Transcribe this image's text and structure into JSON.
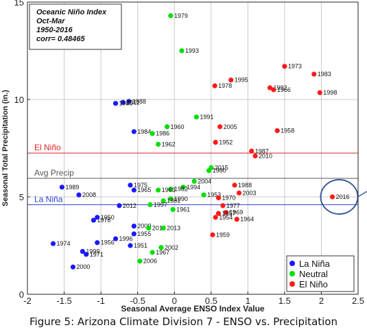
{
  "caption": "Figure 5: Arizona Climate Division 7 - ENSO vs. Precipitation",
  "chart_data": {
    "type": "scatter",
    "title": "",
    "xlabel": "Seasonal Average ENSO Index Value",
    "ylabel": "Seasonal Total Precipitation (in.)",
    "xlim": [
      -2,
      2.5
    ],
    "ylim": [
      0,
      15
    ],
    "xticks": [
      -2,
      -1.5,
      -1,
      -0.5,
      0,
      0.5,
      1,
      1.5,
      2,
      2.5
    ],
    "xtick_labels": [
      "-2",
      "-1.5",
      "-1",
      "-0.5",
      "0",
      "0.5",
      "1",
      "1.5",
      "2",
      "2.5"
    ],
    "yticks": [
      0,
      5,
      10,
      15
    ],
    "ytick_labels": [
      "0",
      "5",
      "10",
      "15"
    ],
    "grid": true,
    "info_box": [
      "Oceanic Niño Index",
      "Oct-Mar",
      "1950-2016",
      "corr= 0.48465"
    ],
    "threshold_lines": [
      {
        "label": "El Niño",
        "y": 7.25,
        "color": "#e02020"
      },
      {
        "label": "Avg Precip",
        "y": 5.95,
        "color": "#555555"
      },
      {
        "label": "La Niña",
        "y": 4.6,
        "color": "#2a3fd6"
      }
    ],
    "legend": {
      "position": "bottom-right",
      "entries": [
        {
          "label": "La Niña",
          "color": "#1a1aff"
        },
        {
          "label": "Neutral",
          "color": "#00e000"
        },
        {
          "label": "El Niño",
          "color": "#ff1a1a"
        }
      ]
    },
    "highlight": {
      "label": "2016",
      "x": 2.15,
      "y": 5.0,
      "circle_color": "#3a5a9a"
    },
    "series": [
      {
        "name": "La Niña",
        "color": "#1a1aff",
        "points": [
          {
            "year": "1988",
            "x": -0.62,
            "y": 9.9
          },
          {
            "year": "2000",
            "x": -1.38,
            "y": 1.4
          },
          {
            "year": "2008",
            "x": -1.3,
            "y": 5.1
          },
          {
            "year": "1989",
            "x": -1.53,
            "y": 5.5
          },
          {
            "year": "1999",
            "x": -1.25,
            "y": 2.2
          },
          {
            "year": "1971",
            "x": -1.2,
            "y": 2.05
          },
          {
            "year": "1974",
            "x": -1.65,
            "y": 2.6
          },
          {
            "year": "1956",
            "x": -1.05,
            "y": 2.65
          },
          {
            "year": "1996",
            "x": -0.8,
            "y": 2.85
          },
          {
            "year": "1951",
            "x": -0.6,
            "y": 2.5
          },
          {
            "year": "1955",
            "x": -0.55,
            "y": 3.1
          },
          {
            "year": "2009",
            "x": -0.55,
            "y": 3.5
          },
          {
            "year": "1976",
            "x": -1.1,
            "y": 3.8
          },
          {
            "year": "1950",
            "x": -1.05,
            "y": 3.95
          },
          {
            "year": "2012",
            "x": -0.75,
            "y": 4.55
          },
          {
            "year": "1975",
            "x": -0.6,
            "y": 5.6
          },
          {
            "year": "1965",
            "x": -0.55,
            "y": 5.35
          },
          {
            "year": "1984",
            "x": -0.55,
            "y": 8.35
          },
          {
            "year": "2011",
            "x": -0.7,
            "y": 9.85
          },
          {
            "year": "1985",
            "x": -0.8,
            "y": 9.8
          }
        ]
      },
      {
        "name": "Neutral",
        "color": "#00e000",
        "points": [
          {
            "year": "1979",
            "x": -0.05,
            "y": 14.3
          },
          {
            "year": "1993",
            "x": 0.1,
            "y": 12.5
          },
          {
            "year": "1991",
            "x": 0.3,
            "y": 9.1
          },
          {
            "year": "1960",
            "x": -0.1,
            "y": 8.6
          },
          {
            "year": "1986",
            "x": -0.3,
            "y": 8.25
          },
          {
            "year": "1962",
            "x": -0.22,
            "y": 7.7
          },
          {
            "year": "2015",
            "x": 0.5,
            "y": 6.5
          },
          {
            "year": "1980",
            "x": 0.47,
            "y": 6.35
          },
          {
            "year": "2004",
            "x": 0.27,
            "y": 5.8
          },
          {
            "year": "1994",
            "x": 0.12,
            "y": 5.5
          },
          {
            "year": "1982",
            "x": -0.05,
            "y": 5.4
          },
          {
            "year": "1963",
            "x": -0.22,
            "y": 5.35
          },
          {
            "year": "1953",
            "x": 0.4,
            "y": 5.1
          },
          {
            "year": "1990",
            "x": -0.05,
            "y": 4.9
          },
          {
            "year": "1981",
            "x": -0.15,
            "y": 4.8
          },
          {
            "year": "1997",
            "x": -0.33,
            "y": 4.6
          },
          {
            "year": "1961",
            "x": -0.02,
            "y": 4.35
          },
          {
            "year": "2014",
            "x": -0.35,
            "y": 3.4
          },
          {
            "year": "2013",
            "x": -0.15,
            "y": 3.4
          },
          {
            "year": "2002",
            "x": -0.18,
            "y": 2.4
          },
          {
            "year": "1967",
            "x": -0.3,
            "y": 2.15
          },
          {
            "year": "2006",
            "x": -0.47,
            "y": 1.7
          }
        ]
      },
      {
        "name": "El Niño",
        "color": "#ff1a1a",
        "points": [
          {
            "year": "1973",
            "x": 1.5,
            "y": 11.7
          },
          {
            "year": "1983",
            "x": 1.9,
            "y": 11.3
          },
          {
            "year": "1995",
            "x": 0.77,
            "y": 11.0
          },
          {
            "year": "1978",
            "x": 0.55,
            "y": 10.7
          },
          {
            "year": "1992",
            "x": 1.3,
            "y": 10.6
          },
          {
            "year": "1966",
            "x": 1.35,
            "y": 10.5
          },
          {
            "year": "1998",
            "x": 1.98,
            "y": 10.35
          },
          {
            "year": "2005",
            "x": 0.62,
            "y": 8.6
          },
          {
            "year": "1958",
            "x": 1.4,
            "y": 8.4
          },
          {
            "year": "1952",
            "x": 0.56,
            "y": 7.8
          },
          {
            "year": "1987",
            "x": 1.05,
            "y": 7.35
          },
          {
            "year": "2010",
            "x": 1.1,
            "y": 7.1
          },
          {
            "year": "1988",
            "x": 0.82,
            "y": 5.6
          },
          {
            "year": "2003",
            "x": 0.88,
            "y": 5.2
          },
          {
            "year": "1970",
            "x": 0.6,
            "y": 4.95
          },
          {
            "year": "1977",
            "x": 0.66,
            "y": 4.55
          },
          {
            "year": "1969",
            "x": 0.7,
            "y": 4.2
          },
          {
            "year": "1957",
            "x": 0.6,
            "y": 4.15
          },
          {
            "year": "1954",
            "x": 0.56,
            "y": 3.95
          },
          {
            "year": "1964",
            "x": 0.85,
            "y": 3.85
          },
          {
            "year": "1959",
            "x": 0.52,
            "y": 3.05
          },
          {
            "year": "2016",
            "x": 2.15,
            "y": 5.0
          }
        ]
      }
    ]
  }
}
